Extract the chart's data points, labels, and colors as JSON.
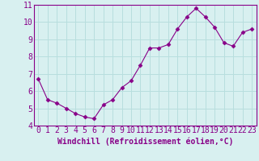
{
  "x": [
    0,
    1,
    2,
    3,
    4,
    5,
    6,
    7,
    8,
    9,
    10,
    11,
    12,
    13,
    14,
    15,
    16,
    17,
    18,
    19,
    20,
    21,
    22,
    23
  ],
  "y": [
    6.7,
    5.5,
    5.3,
    5.0,
    4.7,
    4.5,
    4.4,
    5.2,
    5.5,
    6.2,
    6.6,
    7.5,
    8.5,
    8.5,
    8.7,
    9.6,
    10.3,
    10.8,
    10.3,
    9.7,
    8.8,
    8.6,
    9.4,
    9.6
  ],
  "line_color": "#880088",
  "marker": "D",
  "marker_size": 2.5,
  "background_color": "#d8f0f0",
  "grid_color": "#b8dede",
  "xlabel": "Windchill (Refroidissement éolien,°C)",
  "xlabel_fontsize": 7,
  "tick_fontsize": 7,
  "ylim": [
    4,
    11
  ],
  "yticks": [
    4,
    5,
    6,
    7,
    8,
    9,
    10,
    11
  ],
  "xlim": [
    -0.5,
    23.5
  ],
  "xticks": [
    0,
    1,
    2,
    3,
    4,
    5,
    6,
    7,
    8,
    9,
    10,
    11,
    12,
    13,
    14,
    15,
    16,
    17,
    18,
    19,
    20,
    21,
    22,
    23
  ],
  "spine_color": "#880088"
}
